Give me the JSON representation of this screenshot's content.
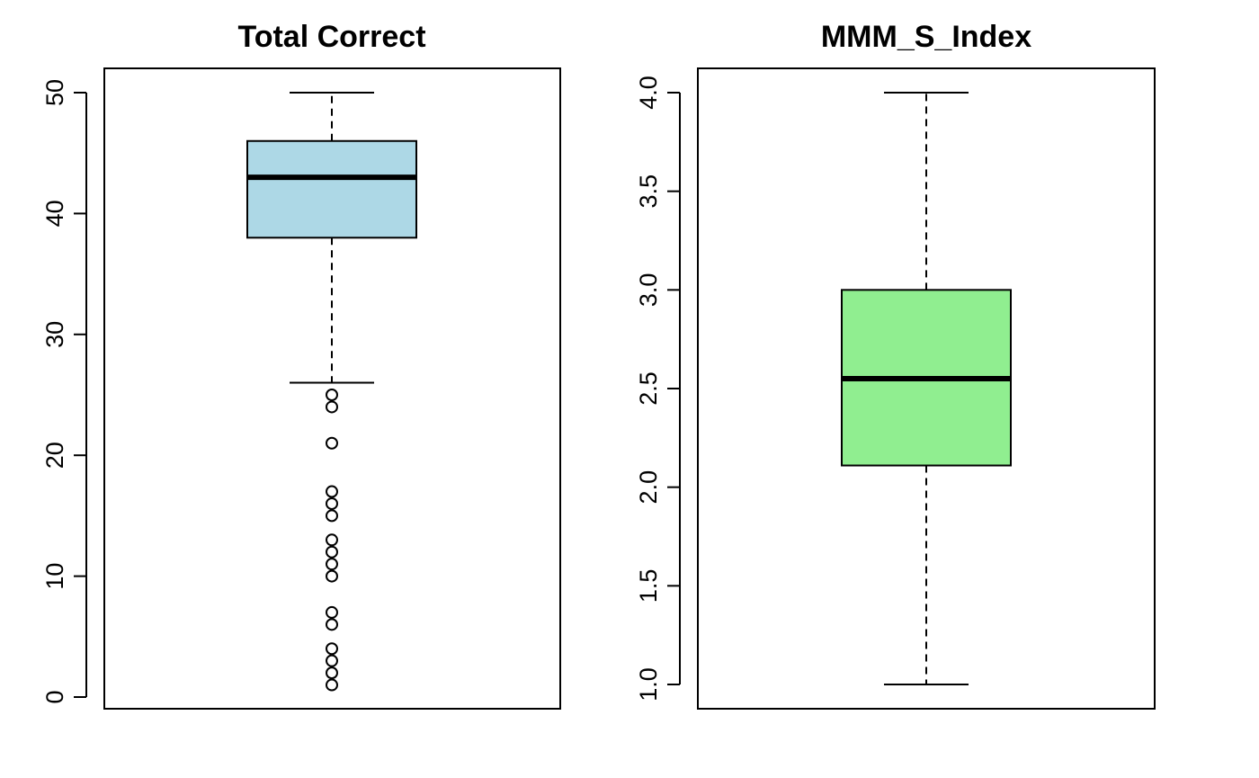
{
  "chart_data": [
    {
      "type": "boxplot",
      "title": "Total Correct",
      "box_color": "#add8e6",
      "ylim": [
        0,
        50
      ],
      "yticks": [
        "0",
        "10",
        "20",
        "30",
        "40",
        "50"
      ],
      "stats": {
        "whisker_low": 26,
        "q1": 38,
        "median": 43,
        "q3": 46,
        "whisker_high": 50
      },
      "outliers": [
        25,
        24,
        21,
        17,
        16,
        15,
        13,
        12,
        11,
        10,
        7,
        6,
        4,
        3,
        2,
        1
      ]
    },
    {
      "type": "boxplot",
      "title": "MMM_S_Index",
      "box_color": "#90ee90",
      "ylim": [
        1.0,
        4.0
      ],
      "yticks": [
        "1.0",
        "1.5",
        "2.0",
        "2.5",
        "3.0",
        "3.5",
        "4.0"
      ],
      "stats": {
        "whisker_low": 1.0,
        "q1": 2.11,
        "median": 2.55,
        "q3": 3.0,
        "whisker_high": 4.0
      },
      "outliers": []
    }
  ]
}
